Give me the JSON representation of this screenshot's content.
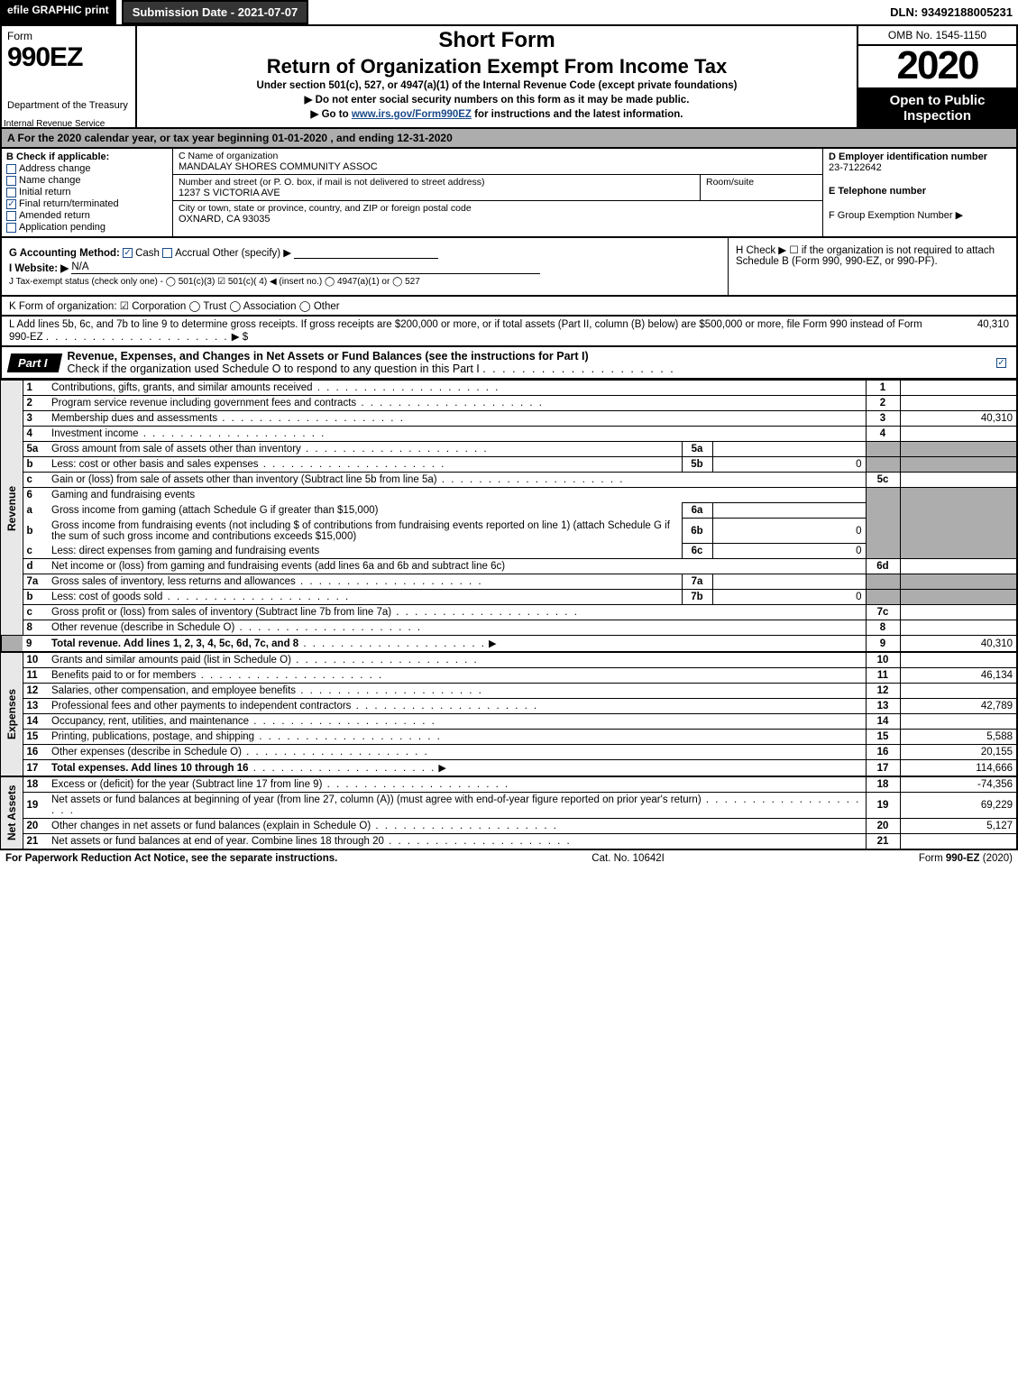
{
  "topbar": {
    "efile": "efile GRAPHIC print",
    "submission": "Submission Date - 2021-07-07",
    "dln": "DLN: 93492188005231"
  },
  "header": {
    "form_word": "Form",
    "form_num": "990EZ",
    "dept": "Department of the Treasury",
    "irs_overprint": "Internal Revenue Service",
    "short_form": "Short Form",
    "return_title": "Return of Organization Exempt From Income Tax",
    "under": "Under section 501(c), 527, or 4947(a)(1) of the Internal Revenue Code (except private foundations)",
    "no_ssn": "▶ Do not enter social security numbers on this form as it may be made public.",
    "goto_pre": "▶ Go to ",
    "goto_link": "www.irs.gov/Form990EZ",
    "goto_post": " for instructions and the latest information.",
    "omb": "OMB No. 1545-1150",
    "year": "2020",
    "open1": "Open to Public",
    "open2": "Inspection"
  },
  "period": "A For the 2020 calendar year, or tax year beginning 01-01-2020 , and ending 12-31-2020",
  "boxB": {
    "title": "B Check if applicable:",
    "items": [
      "Address change",
      "Name change",
      "Initial return",
      "Final return/terminated",
      "Amended return",
      "Application pending"
    ],
    "checked": [
      false,
      false,
      false,
      true,
      false,
      false
    ]
  },
  "boxC": {
    "label_name": "C Name of organization",
    "name": "MANDALAY SHORES COMMUNITY ASSOC",
    "label_addr": "Number and street (or P. O. box, if mail is not delivered to street address)",
    "room": "Room/suite",
    "addr": "1237 S VICTORIA AVE",
    "label_city": "City or town, state or province, country, and ZIP or foreign postal code",
    "city": "OXNARD, CA  93035"
  },
  "boxD": {
    "label": "D Employer identification number",
    "ein": "23-7122642",
    "e_label": "E Telephone number",
    "f_label": "F Group Exemption Number  ▶"
  },
  "lineG": {
    "label": "G Accounting Method:",
    "cash": "Cash",
    "accrual": "Accrual",
    "other": "Other (specify) ▶"
  },
  "lineH": "H  Check ▶  ☐  if the organization is not required to attach Schedule B (Form 990, 990-EZ, or 990-PF).",
  "lineI": {
    "label": "I Website: ▶",
    "val": "N/A"
  },
  "lineJ": "J Tax-exempt status (check only one) - ◯ 501(c)(3)  ☑ 501(c)( 4) ◀ (insert no.) ◯ 4947(a)(1) or ◯ 527",
  "lineK": "K Form of organization:  ☑ Corporation  ◯ Trust  ◯ Association  ◯ Other",
  "lineL": {
    "text": "L Add lines 5b, 6c, and 7b to line 9 to determine gross receipts. If gross receipts are $200,000 or more, or if total assets (Part II, column (B) below) are $500,000 or more, file Form 990 instead of Form 990-EZ",
    "arrow": "▶ $",
    "val": "40,310"
  },
  "part1": {
    "tag": "Part I",
    "title": "Revenue, Expenses, and Changes in Net Assets or Fund Balances (see the instructions for Part I)",
    "subtitle": "Check if the organization used Schedule O to respond to any question in this Part I"
  },
  "side": {
    "rev": "Revenue",
    "exp": "Expenses",
    "na": "Net Assets"
  },
  "rows": {
    "1": {
      "n": "1",
      "d": "Contributions, gifts, grants, and similar amounts received",
      "c": "1",
      "a": ""
    },
    "2": {
      "n": "2",
      "d": "Program service revenue including government fees and contracts",
      "c": "2",
      "a": ""
    },
    "3": {
      "n": "3",
      "d": "Membership dues and assessments",
      "c": "3",
      "a": "40,310"
    },
    "4": {
      "n": "4",
      "d": "Investment income",
      "c": "4",
      "a": ""
    },
    "5a": {
      "n": "5a",
      "d": "Gross amount from sale of assets other than inventory",
      "sl": "5a",
      "sv": ""
    },
    "5b": {
      "n": "b",
      "d": "Less: cost or other basis and sales expenses",
      "sl": "5b",
      "sv": "0"
    },
    "5c": {
      "n": "c",
      "d": "Gain or (loss) from sale of assets other than inventory (Subtract line 5b from line 5a)",
      "c": "5c",
      "a": ""
    },
    "6": {
      "n": "6",
      "d": "Gaming and fundraising events"
    },
    "6a": {
      "n": "a",
      "d": "Gross income from gaming (attach Schedule G if greater than $15,000)",
      "sl": "6a",
      "sv": ""
    },
    "6b": {
      "n": "b",
      "d": "Gross income from fundraising events (not including $                   of contributions from fundraising events reported on line 1) (attach Schedule G if the sum of such gross income and contributions exceeds $15,000)",
      "sl": "6b",
      "sv": "0"
    },
    "6c": {
      "n": "c",
      "d": "Less: direct expenses from gaming and fundraising events",
      "sl": "6c",
      "sv": "0"
    },
    "6d": {
      "n": "d",
      "d": "Net income or (loss) from gaming and fundraising events (add lines 6a and 6b and subtract line 6c)",
      "c": "6d",
      "a": ""
    },
    "7a": {
      "n": "7a",
      "d": "Gross sales of inventory, less returns and allowances",
      "sl": "7a",
      "sv": ""
    },
    "7b": {
      "n": "b",
      "d": "Less: cost of goods sold",
      "sl": "7b",
      "sv": "0"
    },
    "7c": {
      "n": "c",
      "d": "Gross profit or (loss) from sales of inventory (Subtract line 7b from line 7a)",
      "c": "7c",
      "a": ""
    },
    "8": {
      "n": "8",
      "d": "Other revenue (describe in Schedule O)",
      "c": "8",
      "a": ""
    },
    "9": {
      "n": "9",
      "d": "Total revenue. Add lines 1, 2, 3, 4, 5c, 6d, 7c, and 8",
      "c": "9",
      "a": "40,310",
      "arrow": true,
      "bold": true
    },
    "10": {
      "n": "10",
      "d": "Grants and similar amounts paid (list in Schedule O)",
      "c": "10",
      "a": ""
    },
    "11": {
      "n": "11",
      "d": "Benefits paid to or for members",
      "c": "11",
      "a": "46,134"
    },
    "12": {
      "n": "12",
      "d": "Salaries, other compensation, and employee benefits",
      "c": "12",
      "a": ""
    },
    "13": {
      "n": "13",
      "d": "Professional fees and other payments to independent contractors",
      "c": "13",
      "a": "42,789"
    },
    "14": {
      "n": "14",
      "d": "Occupancy, rent, utilities, and maintenance",
      "c": "14",
      "a": ""
    },
    "15": {
      "n": "15",
      "d": "Printing, publications, postage, and shipping",
      "c": "15",
      "a": "5,588"
    },
    "16": {
      "n": "16",
      "d": "Other expenses (describe in Schedule O)",
      "c": "16",
      "a": "20,155"
    },
    "17": {
      "n": "17",
      "d": "Total expenses. Add lines 10 through 16",
      "c": "17",
      "a": "114,666",
      "arrow": true,
      "bold": true
    },
    "18": {
      "n": "18",
      "d": "Excess or (deficit) for the year (Subtract line 17 from line 9)",
      "c": "18",
      "a": "-74,356"
    },
    "19": {
      "n": "19",
      "d": "Net assets or fund balances at beginning of year (from line 27, column (A)) (must agree with end-of-year figure reported on prior year's return)",
      "c": "19",
      "a": "69,229"
    },
    "20": {
      "n": "20",
      "d": "Other changes in net assets or fund balances (explain in Schedule O)",
      "c": "20",
      "a": "5,127"
    },
    "21": {
      "n": "21",
      "d": "Net assets or fund balances at end of year. Combine lines 18 through 20",
      "c": "21",
      "a": ""
    }
  },
  "footer": {
    "left": "For Paperwork Reduction Act Notice, see the separate instructions.",
    "mid": "Cat. No. 10642I",
    "right_pre": "Form ",
    "right_bold": "990-EZ",
    "right_post": " (2020)"
  },
  "style": {
    "page_bg": "#ffffff",
    "black": "#000000",
    "gray_header": "#adadad",
    "gray_side": "#e8e8e8",
    "link_blue": "#1a4b8b",
    "base_font_pt": 11,
    "title_font_pt": 22,
    "year_font_pt": 44
  }
}
